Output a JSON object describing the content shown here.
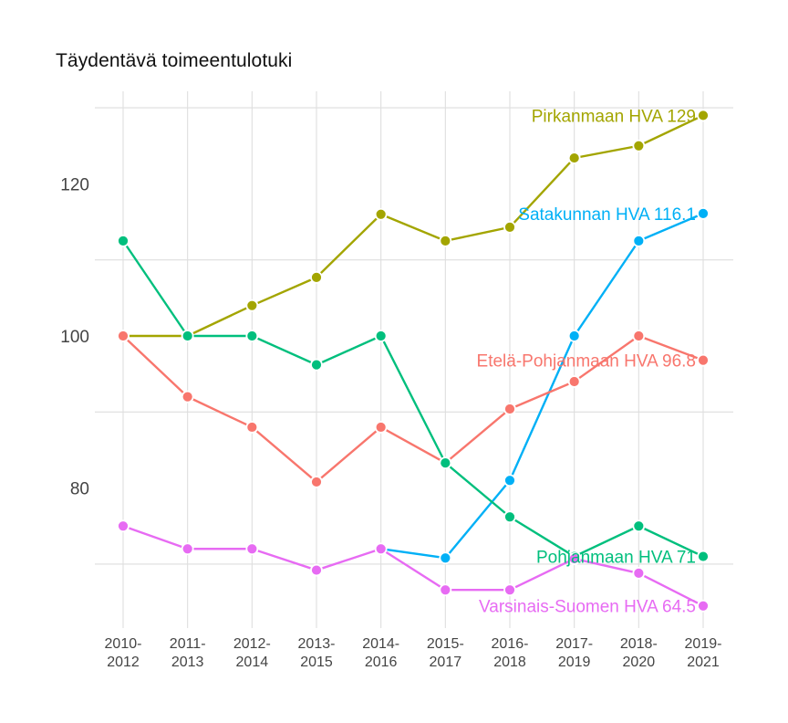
{
  "title": "Täydentävä toimeentulotuki",
  "chart_data": {
    "type": "line",
    "title": "Täydentävä toimeentulotuki",
    "xlabel": "",
    "ylabel": "",
    "categories": [
      "2010-\n2012",
      "2011-\n2013",
      "2012-\n2014",
      "2013-\n2015",
      "2014-\n2016",
      "2015-\n2017",
      "2016-\n2018",
      "2017-\n2019",
      "2018-\n2020",
      "2019-\n2021"
    ],
    "category_labels": [
      [
        "2010-",
        "2012"
      ],
      [
        "2011-",
        "2013"
      ],
      [
        "2012-",
        "2014"
      ],
      [
        "2013-",
        "2015"
      ],
      [
        "2014-",
        "2016"
      ],
      [
        "2015-",
        "2017"
      ],
      [
        "2016-",
        "2018"
      ],
      [
        "2017-",
        "2019"
      ],
      [
        "2018-",
        "2020"
      ],
      [
        "2019-",
        "2021"
      ]
    ],
    "yticks": [
      80,
      100,
      120
    ],
    "ygrid": [
      70,
      90,
      110,
      130
    ],
    "ylim": [
      62.5,
      131.5
    ],
    "grid": true,
    "legend": "none (direct end labels)",
    "series": [
      {
        "name": "Pirkanmaan HVA",
        "color": "#A3A500",
        "end_label": "Pirkanmaan HVA 129",
        "values": [
          100,
          100,
          104,
          107.7,
          116,
          112.5,
          114.3,
          123.4,
          125,
          129
        ]
      },
      {
        "name": "Satakunnan HVA",
        "color": "#00B0F6",
        "end_label": "Satakunnan HVA 116.1",
        "values": [
          null,
          null,
          null,
          null,
          72,
          70.8,
          81,
          100,
          112.5,
          116.1
        ]
      },
      {
        "name": "Etelä-Pohjanmaan HVA",
        "color": "#F8766D",
        "end_label": "Etelä-Pohjanmaan HVA 96.8",
        "values": [
          100,
          92,
          88,
          80.8,
          88,
          83.3,
          90.4,
          94,
          100,
          96.8
        ]
      },
      {
        "name": "Pohjanmaan HVA",
        "color": "#00BF7D",
        "end_label": "Pohjanmaan HVA 71",
        "values": [
          112.5,
          100,
          100,
          96.2,
          100,
          83.3,
          76.2,
          71,
          75,
          71
        ]
      },
      {
        "name": "Varsinais-Suomen HVA",
        "color": "#E76BF3",
        "end_label": "Varsinais-Suomen HVA 64.5",
        "values": [
          75,
          72,
          72,
          69.2,
          72,
          66.6,
          66.6,
          70.7,
          68.8,
          64.5
        ]
      }
    ]
  }
}
